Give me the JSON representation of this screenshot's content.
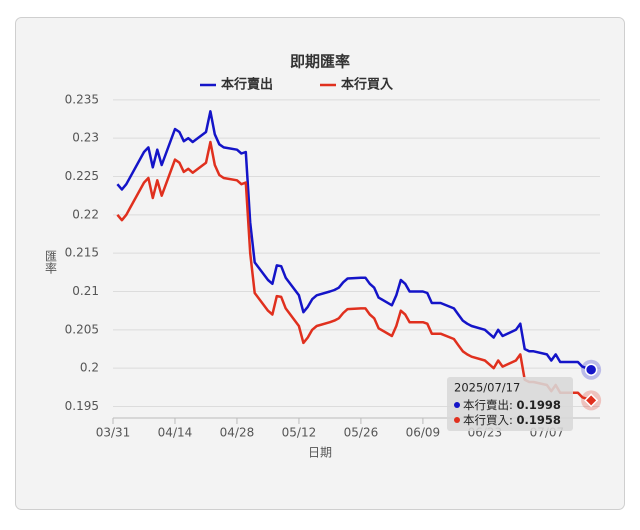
{
  "chart_data": {
    "type": "line",
    "title": "即期匯率",
    "xlabel": "日期",
    "ylabel": "匯率",
    "x": [
      "2025-04-01",
      "2025-04-02",
      "2025-04-03",
      "2025-04-07",
      "2025-04-08",
      "2025-04-09",
      "2025-04-10",
      "2025-04-11",
      "2025-04-14",
      "2025-04-15",
      "2025-04-16",
      "2025-04-17",
      "2025-04-18",
      "2025-04-21",
      "2025-04-22",
      "2025-04-23",
      "2025-04-24",
      "2025-04-25",
      "2025-04-28",
      "2025-04-29",
      "2025-04-30",
      "2025-05-01",
      "2025-05-02",
      "2025-05-05",
      "2025-05-06",
      "2025-05-07",
      "2025-05-08",
      "2025-05-09",
      "2025-05-12",
      "2025-05-13",
      "2025-05-14",
      "2025-05-15",
      "2025-05-16",
      "2025-05-19",
      "2025-05-20",
      "2025-05-21",
      "2025-05-22",
      "2025-05-23",
      "2025-05-26",
      "2025-05-27",
      "2025-05-28",
      "2025-05-29",
      "2025-05-30",
      "2025-06-02",
      "2025-06-03",
      "2025-06-04",
      "2025-06-05",
      "2025-06-06",
      "2025-06-09",
      "2025-06-10",
      "2025-06-11",
      "2025-06-12",
      "2025-06-13",
      "2025-06-16",
      "2025-06-17",
      "2025-06-18",
      "2025-06-19",
      "2025-06-20",
      "2025-06-23",
      "2025-06-24",
      "2025-06-25",
      "2025-06-26",
      "2025-06-27",
      "2025-06-30",
      "2025-07-01",
      "2025-07-02",
      "2025-07-03",
      "2025-07-04",
      "2025-07-07",
      "2025-07-08",
      "2025-07-09",
      "2025-07-10",
      "2025-07-11",
      "2025-07-14",
      "2025-07-15",
      "2025-07-16",
      "2025-07-17"
    ],
    "series": [
      {
        "name": "本行賣出",
        "color": "#1414c8",
        "values": [
          0.224,
          0.2233,
          0.224,
          0.2282,
          0.2288,
          0.2262,
          0.2285,
          0.2265,
          0.2312,
          0.2308,
          0.2296,
          0.23,
          0.2295,
          0.2308,
          0.2335,
          0.2305,
          0.2292,
          0.2288,
          0.2285,
          0.228,
          0.2282,
          0.219,
          0.2138,
          0.2115,
          0.211,
          0.2134,
          0.2133,
          0.2118,
          0.2095,
          0.2073,
          0.208,
          0.209,
          0.2095,
          0.21,
          0.2102,
          0.2105,
          0.2112,
          0.2117,
          0.2118,
          0.2118,
          0.211,
          0.2105,
          0.2092,
          0.2082,
          0.2095,
          0.2115,
          0.211,
          0.21,
          0.21,
          0.2098,
          0.2085,
          0.2085,
          0.2085,
          0.2078,
          0.207,
          0.2062,
          0.2058,
          0.2055,
          0.205,
          0.2045,
          0.204,
          0.205,
          0.2042,
          0.205,
          0.2058,
          0.2025,
          0.2022,
          0.2022,
          0.2018,
          0.201,
          0.2018,
          0.2008,
          0.2008,
          0.2008,
          0.2002,
          0.2,
          0.1998
        ]
      },
      {
        "name": "本行買入",
        "color": "#e0301e",
        "values": [
          0.22,
          0.2193,
          0.22,
          0.2242,
          0.2248,
          0.2222,
          0.2245,
          0.2225,
          0.2272,
          0.2268,
          0.2256,
          0.226,
          0.2255,
          0.2268,
          0.2295,
          0.2265,
          0.2252,
          0.2248,
          0.2245,
          0.224,
          0.2242,
          0.215,
          0.2098,
          0.2075,
          0.207,
          0.2094,
          0.2093,
          0.2078,
          0.2055,
          0.2033,
          0.204,
          0.205,
          0.2055,
          0.206,
          0.2062,
          0.2065,
          0.2072,
          0.2077,
          0.2078,
          0.2078,
          0.207,
          0.2065,
          0.2052,
          0.2042,
          0.2055,
          0.2075,
          0.207,
          0.206,
          0.206,
          0.2058,
          0.2045,
          0.2045,
          0.2045,
          0.2038,
          0.203,
          0.2022,
          0.2018,
          0.2015,
          0.201,
          0.2005,
          0.2,
          0.201,
          0.2002,
          0.201,
          0.2018,
          0.1985,
          0.1982,
          0.1982,
          0.1978,
          0.197,
          0.1978,
          0.1968,
          0.1968,
          0.1968,
          0.1962,
          0.196,
          0.1958
        ]
      }
    ],
    "xlim": [
      "2025-03-31",
      "2025-07-19"
    ],
    "xticks": [
      {
        "value": "2025-03-31",
        "label": "03/31"
      },
      {
        "value": "2025-04-14",
        "label": "04/14"
      },
      {
        "value": "2025-04-28",
        "label": "04/28"
      },
      {
        "value": "2025-05-12",
        "label": "05/12"
      },
      {
        "value": "2025-05-26",
        "label": "05/26"
      },
      {
        "value": "2025-06-09",
        "label": "06/09"
      },
      {
        "value": "2025-06-23",
        "label": "06/23"
      },
      {
        "value": "2025-07-07",
        "label": "07/07"
      }
    ],
    "ylim": [
      0.1935,
      0.2355
    ],
    "yticks": [
      0.195,
      0.2,
      0.205,
      0.21,
      0.215,
      0.22,
      0.225,
      0.23,
      0.235
    ],
    "grid": true,
    "legend": "top",
    "tooltip": {
      "date": "2025/07/17"
    }
  }
}
